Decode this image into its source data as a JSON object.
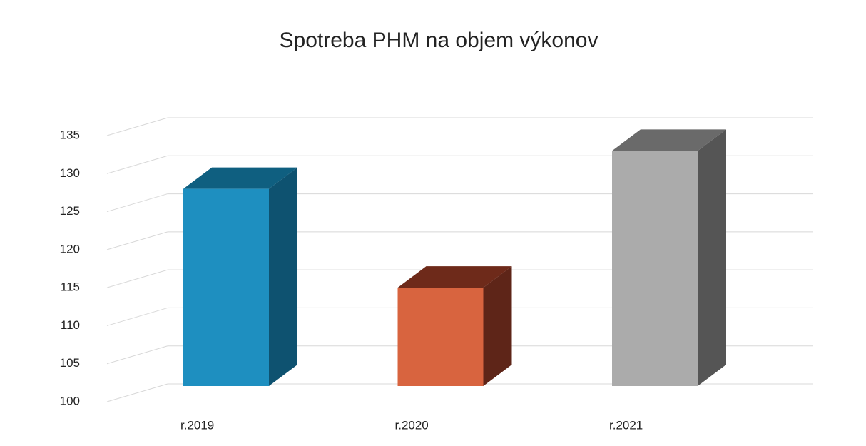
{
  "chart_data": {
    "type": "bar3d",
    "title": "Spotreba PHM na objem výkonov",
    "categories": [
      "r.2019",
      "r.2020",
      "r.2021"
    ],
    "values": [
      128,
      115,
      133
    ],
    "colors": [
      "#1e8fc0",
      "#d8643f",
      "#ababab"
    ],
    "side_colors": [
      "#0e5270",
      "#5e2518",
      "#555555"
    ],
    "top_colors": [
      "#0f5f80",
      "#6e2a1a",
      "#6a6a6a"
    ],
    "ylim": [
      100,
      135
    ],
    "yticks": [
      100,
      105,
      110,
      115,
      120,
      125,
      130,
      135
    ],
    "grid": true
  }
}
